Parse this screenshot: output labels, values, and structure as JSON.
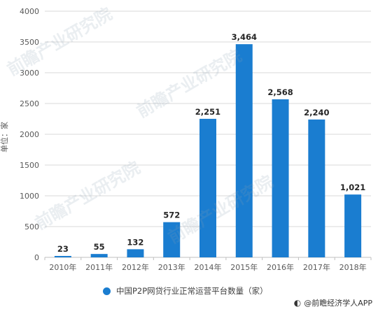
{
  "chart_data": {
    "type": "bar",
    "categories": [
      "2010年",
      "2011年",
      "2012年",
      "2013年",
      "2014年",
      "2015年",
      "2016年",
      "2017年",
      "2018年"
    ],
    "values": [
      23,
      55,
      132,
      572,
      2251,
      3464,
      2568,
      2240,
      1021
    ],
    "value_labels": [
      "23",
      "55",
      "132",
      "572",
      "2,251",
      "3,464",
      "2,568",
      "2,240",
      "1,021"
    ],
    "ylabel": "单位：家",
    "ylim": [
      0,
      4000
    ],
    "yticks": [
      "0",
      "500",
      "1000",
      "1500",
      "2000",
      "2500",
      "3000",
      "3500",
      "4000"
    ],
    "series_name": "中国P2P网贷行业正常运营平台数量（家）",
    "bar_color": "#1a7dd0",
    "grid": true,
    "legend_position": "bottom"
  },
  "source": "@前瞻经济学人APP",
  "watermark": "前瞻产业研究院"
}
